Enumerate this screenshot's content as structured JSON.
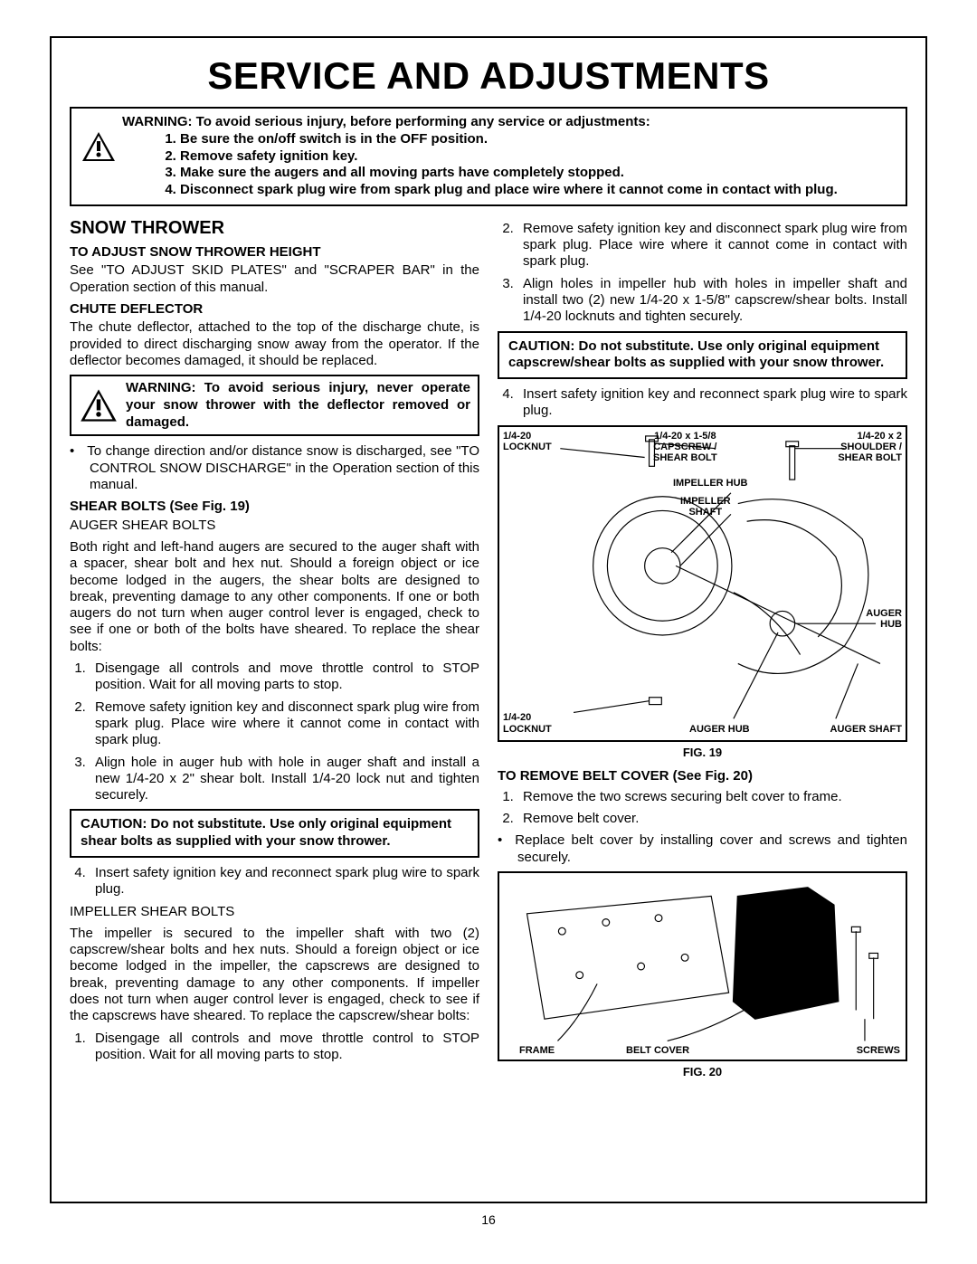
{
  "title": "SERVICE AND ADJUSTMENTS",
  "page_number": "16",
  "top_warning": {
    "lead": "WARNING: To avoid serious injury, before performing any service or adjustments:",
    "items": [
      "Be sure the on/off switch is in the OFF position.",
      "Remove safety ignition key.",
      "Make sure the augers and all moving parts have completely stopped.",
      "Disconnect spark plug wire from spark plug and place wire where it cannot come in contact with plug."
    ]
  },
  "left": {
    "h2": "SNOW THROWER",
    "h3a": "TO ADJUST SNOW THROWER HEIGHT",
    "p1": "See \"TO ADJUST SKID PLATES\" and \"SCRAPER BAR\" in the Operation section of this manual.",
    "h3b": "CHUTE DEFLECTOR",
    "p2": "The chute deflector, attached to the top of the discharge chute, is provided to direct discharging snow away from the operator. If the deflector becomes damaged, it should be replaced.",
    "warn2": "WARNING: To avoid serious injury, never operate your snow thrower with the deflector removed or damaged.",
    "bullet1": "To change direction and/or distance snow is discharged, see \"TO CONTROL SNOW DISCHARGE\" in the Operation section of this manual.",
    "h3c": "SHEAR BOLTS (See Fig. 19)",
    "sub1": "AUGER SHEAR BOLTS",
    "p3": "Both right and left-hand augers are secured to the auger shaft with a spacer, shear bolt and hex nut. Should a foreign object or ice become lodged in the augers, the shear bolts are designed to break, preventing damage to any other components. If one or both augers do not turn when auger control lever is engaged, check to see if one or both of the bolts have sheared. To replace the shear bolts:",
    "ol1": [
      "Disengage all controls and move throttle control to STOP position. Wait for all moving parts to stop.",
      "Remove safety ignition key and disconnect spark plug wire from spark plug.  Place wire where it cannot come in contact with spark plug.",
      "Align hole in auger hub with hole in auger shaft and install a new 1/4-20 x 2\" shear bolt.  Install 1/4-20 lock nut and tighten securely."
    ],
    "caution1": "CAUTION: Do not substitute. Use only original equipment shear bolts as supplied with your snow thrower.",
    "ol1b": [
      "Insert safety ignition key and reconnect spark plug wire to spark plug."
    ],
    "sub2": "IMPELLER SHEAR BOLTS",
    "p4": "The impeller is secured to the impeller shaft with two (2) capscrew/shear bolts and hex nuts. Should a foreign object or ice become lodged in the impeller, the capscrews are designed to break, preventing damage to any other components. If impeller does not turn when auger control lever is engaged, check to see if the capscrews have sheared. To replace the capscrew/shear bolts:",
    "ol2": [
      "Disengage all controls and move throttle control to STOP position. Wait for all moving parts to stop."
    ]
  },
  "right": {
    "ol_cont": [
      "Remove safety ignition key and disconnect spark plug wire from spark plug.  Place wire where it cannot come in contact with spark plug.",
      "Align holes in impeller hub with holes in impeller shaft and install two (2) new 1/4-20 x 1-5/8\" capscrew/shear bolts. Install 1/4-20 locknuts and tighten securely."
    ],
    "caution2": "CAUTION: Do not substitute. Use only original equipment capscrew/shear bolts as supplied with your snow thrower.",
    "ol_cont2": [
      "Insert safety ignition key and reconnect spark plug wire to spark plug."
    ],
    "fig19": {
      "caption": "FIG. 19",
      "labels": {
        "l1": "1/4-20\nLOCKNUT",
        "l2": "1/4-20 x 1-5/8\nCAPSCREW /\nSHEAR BOLT",
        "l3": "1/4-20 x 2\nSHOULDER /\nSHEAR BOLT",
        "l4": "IMPELLER HUB",
        "l5": "IMPELLER\nSHAFT",
        "l6": "AUGER\nHUB",
        "l7": "1/4-20\nLOCKNUT",
        "l8": "AUGER HUB",
        "l9": "AUGER SHAFT"
      }
    },
    "h3d": "TO REMOVE BELT COVER (See Fig. 20)",
    "ol3": [
      "Remove the two screws securing belt cover to frame.",
      "Remove belt cover."
    ],
    "bullet2": "Replace belt cover by installing cover and screws and tighten securely.",
    "fig20": {
      "caption": "FIG. 20",
      "labels": {
        "frame": "FRAME",
        "cover": "BELT COVER",
        "screws": "SCREWS"
      }
    }
  }
}
